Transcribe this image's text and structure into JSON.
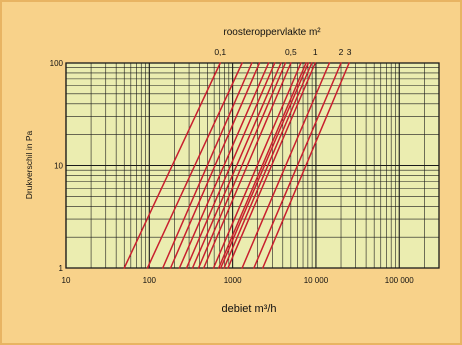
{
  "chart_data": {
    "type": "line",
    "title": "roosteroppervlakte m²",
    "xlabel": "debiet m³/h",
    "ylabel": "Drukverschil in Pa",
    "x_scale": "log",
    "y_scale": "log",
    "xlim": [
      10,
      300000
    ],
    "ylim": [
      1,
      100
    ],
    "grid": true,
    "x_ticks": [
      "10",
      "100",
      "1000",
      "10 000",
      "100 000"
    ],
    "y_ticks": [
      "1",
      "10",
      "100"
    ],
    "line_labels": [
      "0,1",
      "0,5",
      "1",
      "2",
      "3"
    ],
    "series": [
      {
        "points": [
          [
            50,
            1
          ],
          [
            710,
            100
          ]
        ]
      },
      {
        "points": [
          [
            95,
            1
          ],
          [
            1300,
            100
          ]
        ]
      },
      {
        "points": [
          [
            145,
            1
          ],
          [
            1700,
            100
          ]
        ]
      },
      {
        "points": [
          [
            180,
            1
          ],
          [
            2100,
            100
          ]
        ]
      },
      {
        "points": [
          [
            230,
            1
          ],
          [
            2700,
            100
          ]
        ]
      },
      {
        "points": [
          [
            280,
            1
          ],
          [
            3200,
            100
          ]
        ]
      },
      {
        "points": [
          [
            330,
            1
          ],
          [
            3800,
            100
          ]
        ]
      },
      {
        "points": [
          [
            390,
            1
          ],
          [
            4300,
            100
          ]
        ]
      },
      {
        "points": [
          [
            450,
            1
          ],
          [
            5000,
            100
          ]
        ]
      },
      {
        "points": [
          [
            590,
            1
          ],
          [
            6600,
            100
          ]
        ]
      },
      {
        "points": [
          [
            680,
            1
          ],
          [
            7600,
            100
          ]
        ]
      },
      {
        "points": [
          [
            720,
            1
          ],
          [
            8100,
            100
          ]
        ]
      },
      {
        "points": [
          [
            790,
            1
          ],
          [
            8900,
            100
          ]
        ]
      },
      {
        "points": [
          [
            880,
            1
          ],
          [
            9800,
            100
          ]
        ]
      },
      {
        "points": [
          [
            1300,
            1
          ],
          [
            14500,
            100
          ]
        ]
      },
      {
        "points": [
          [
            1800,
            1
          ],
          [
            20000,
            100
          ]
        ]
      },
      {
        "points": [
          [
            2300,
            1
          ],
          [
            25000,
            100
          ]
        ]
      }
    ]
  },
  "colors": {
    "background": "#f8d28a",
    "plot_area": "#ebedb0",
    "line": "#c8202e",
    "grid": "#1a1a1a"
  }
}
